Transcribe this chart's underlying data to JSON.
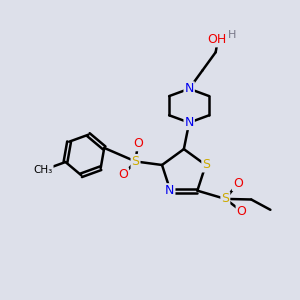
{
  "bg_color": "#dde0ea",
  "atom_colors": {
    "C": "#000000",
    "N": "#0000ee",
    "S": "#ccaa00",
    "O": "#ee0000",
    "H": "#777788"
  },
  "bond_color": "#000000",
  "bond_width": 1.8,
  "font_size_atoms": 9
}
